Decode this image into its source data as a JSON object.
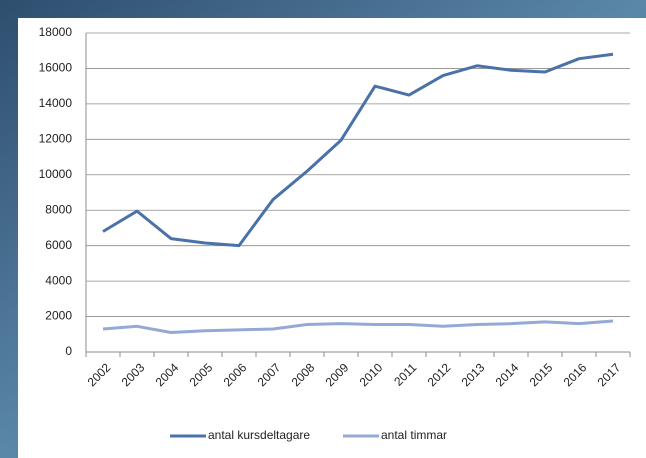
{
  "chart_data": {
    "type": "line",
    "categories": [
      "2002",
      "2003",
      "2004",
      "2005",
      "2006",
      "2007",
      "2008",
      "2009",
      "2010",
      "2011",
      "2012",
      "2013",
      "2014",
      "2015",
      "2016",
      "2017"
    ],
    "series": [
      {
        "name": "antal kursdeltagare",
        "color": "#4a72a8",
        "values": [
          6800,
          7950,
          6400,
          6150,
          6000,
          8600,
          10200,
          11950,
          15000,
          14500,
          15600,
          16150,
          15900,
          15800,
          16550,
          16800
        ]
      },
      {
        "name": "antal timmar",
        "color": "#94a9d4",
        "values": [
          1300,
          1450,
          1100,
          1200,
          1250,
          1300,
          1550,
          1600,
          1550,
          1550,
          1450,
          1550,
          1600,
          1700,
          1600,
          1750
        ]
      }
    ],
    "ylim": [
      0,
      18000
    ],
    "yticks": [
      0,
      2000,
      4000,
      6000,
      8000,
      10000,
      12000,
      14000,
      16000,
      18000
    ],
    "grid": true,
    "legend": "bottom"
  }
}
